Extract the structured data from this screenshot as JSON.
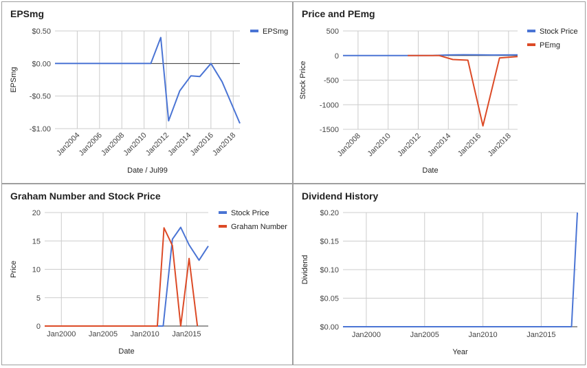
{
  "colors": {
    "blue": "#4a74d4",
    "red": "#dc4a26",
    "grid": "#cccccc",
    "baseline": "#333333"
  },
  "chart_data": [
    {
      "type": "line",
      "title": "EPSmg",
      "xlabel": "Date / Jul99",
      "ylabel": "EPSmg",
      "xlim": [
        2002.0,
        2018.6
      ],
      "ylim": [
        -1.0,
        0.5
      ],
      "xticks": [
        2004,
        2006,
        2008,
        2010,
        2012,
        2014,
        2016,
        2018
      ],
      "xtick_labels": [
        "Jan2004",
        "Jan2006",
        "Jan2008",
        "Jan2010",
        "Jan2012",
        "Jan2014",
        "Jan2016",
        "Jan2018"
      ],
      "yticks": [
        -1.0,
        -0.5,
        0.0,
        0.5
      ],
      "ytick_labels": [
        "-$1.00",
        "-$0.50",
        "$0.00",
        "$0.50"
      ],
      "legend_position": "top-right",
      "series": [
        {
          "name": "EPSmg",
          "color": "#4a74d4",
          "x": [
            2002.0,
            2004.0,
            2006.0,
            2008.0,
            2010.0,
            2010.6,
            2011.5,
            2012.2,
            2013.2,
            2014.2,
            2015.0,
            2016.0,
            2017.0,
            2018.6
          ],
          "y": [
            0.0,
            0.0,
            0.0,
            0.0,
            0.0,
            0.0,
            0.4,
            -0.88,
            -0.42,
            -0.19,
            -0.2,
            0.0,
            -0.28,
            -0.92
          ]
        }
      ]
    },
    {
      "type": "line",
      "title": "Price and PEmg",
      "xlabel": "Date",
      "ylabel": "Stock Price",
      "xlim": [
        2007.0,
        2018.6
      ],
      "ylim": [
        -1500,
        500
      ],
      "xticks": [
        2008,
        2010,
        2012,
        2014,
        2016,
        2018
      ],
      "xtick_labels": [
        "Jan2008",
        "Jan2010",
        "Jan2012",
        "Jan2014",
        "Jan2016",
        "Jan2018"
      ],
      "yticks": [
        -1500,
        -1000,
        -500,
        0,
        500
      ],
      "ytick_labels": [
        "-1500",
        "-1000",
        "-500",
        "0",
        "500"
      ],
      "legend_position": "top-right",
      "series": [
        {
          "name": "Stock Price",
          "color": "#4a74d4",
          "x": [
            2007.0,
            2009.0,
            2011.0,
            2013.0,
            2014.0,
            2015.0,
            2016.0,
            2017.0,
            2018.6
          ],
          "y": [
            0,
            0,
            0,
            2,
            12,
            16,
            14,
            11,
            14
          ]
        },
        {
          "name": "PEmg",
          "color": "#dc4a26",
          "x": [
            2011.3,
            2012.5,
            2013.4,
            2014.3,
            2015.3,
            2016.3,
            2017.4,
            2018.6
          ],
          "y": [
            0,
            0,
            0,
            -80,
            -95,
            -1430,
            -50,
            -20
          ]
        }
      ]
    },
    {
      "type": "line",
      "title": "Graham Number and Stock Price",
      "xlabel": "Date",
      "ylabel": "Price",
      "xlim": [
        1998.0,
        2017.6
      ],
      "ylim": [
        0,
        20
      ],
      "xticks": [
        2000,
        2005,
        2010,
        2015
      ],
      "xtick_labels": [
        "Jan2000",
        "Jan2005",
        "Jan2010",
        "Jan2015"
      ],
      "yticks": [
        0,
        5,
        10,
        15,
        20
      ],
      "ytick_labels": [
        "0",
        "5",
        "10",
        "15",
        "20"
      ],
      "legend_position": "top-right",
      "series": [
        {
          "name": "Stock Price",
          "color": "#4a74d4",
          "x": [
            1998.0,
            2005.0,
            2010.0,
            2012.2,
            2013.3,
            2014.3,
            2015.3,
            2016.5,
            2017.6
          ],
          "y": [
            0,
            0,
            0,
            0,
            15.3,
            17.4,
            14.3,
            11.6,
            14.1
          ]
        },
        {
          "name": "Graham Number",
          "color": "#dc4a26",
          "x": [
            1998.0,
            2005.0,
            2010.0,
            2011.5,
            2012.3,
            2013.3,
            2014.3,
            2015.3,
            2016.3
          ],
          "y": [
            0,
            0,
            0,
            0,
            17.3,
            14.2,
            0,
            11.9,
            0
          ]
        }
      ]
    },
    {
      "type": "line",
      "title": "Dividend History",
      "xlabel": "Year",
      "ylabel": "Dividend",
      "xlim": [
        1998.0,
        2018.1
      ],
      "ylim": [
        0,
        0.2
      ],
      "xticks": [
        2000,
        2005,
        2010,
        2015
      ],
      "xtick_labels": [
        "Jan2000",
        "Jan2005",
        "Jan2010",
        "Jan2015"
      ],
      "yticks": [
        0,
        0.05,
        0.1,
        0.15,
        0.2
      ],
      "ytick_labels": [
        "$0.00",
        "$0.05",
        "$0.10",
        "$0.15",
        "$0.20"
      ],
      "legend_position": "none",
      "series": [
        {
          "color": "#4a74d4",
          "x": [
            1998.0,
            2010.0,
            2017.6,
            2018.1
          ],
          "y": [
            0,
            0,
            0,
            0.2
          ]
        }
      ]
    }
  ]
}
